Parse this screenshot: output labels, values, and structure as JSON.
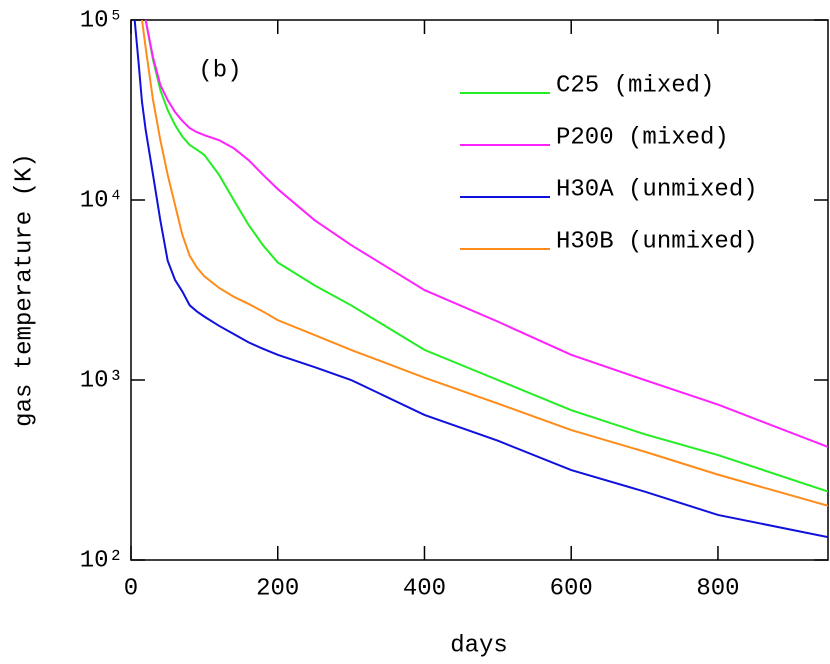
{
  "chart_data": {
    "type": "line",
    "xlabel": "days",
    "ylabel": "gas temperature (K)",
    "annotation": "(b)",
    "log_y": true,
    "x": [
      5,
      10,
      15,
      20,
      30,
      40,
      50,
      60,
      70,
      80,
      90,
      100,
      120,
      140,
      160,
      180,
      200,
      250,
      300,
      400,
      500,
      600,
      700,
      800,
      950
    ],
    "series": [
      {
        "name": "C25 (mixed)",
        "color": "#22ee22",
        "values": [
          null,
          null,
          null,
          100000,
          60000,
          40800,
          31600,
          26100,
          22500,
          20200,
          19000,
          17800,
          13800,
          10000,
          7300,
          5600,
          4500,
          3360,
          2600,
          1470,
          1000,
          680,
          500,
          383,
          240
        ]
      },
      {
        "name": "P200 (mixed)",
        "color": "#ff22ff",
        "values": [
          null,
          null,
          null,
          100000,
          62000,
          43600,
          35900,
          30800,
          27500,
          25100,
          23800,
          22900,
          21500,
          19400,
          16700,
          13800,
          11500,
          7740,
          5620,
          3160,
          2110,
          1380,
          1000,
          730,
          425
        ]
      },
      {
        "name": "H30A (unmixed)",
        "color": "#1111dd",
        "values": [
          100000,
          60000,
          35000,
          24500,
          13800,
          7700,
          4600,
          3600,
          3100,
          2600,
          2400,
          2250,
          2000,
          1800,
          1620,
          1490,
          1380,
          1180,
          1000,
          640,
          460,
          316,
          240,
          178,
          134
        ]
      },
      {
        "name": "H30B (unmixed)",
        "color": "#ff8c1a",
        "values": [
          null,
          null,
          100000,
          70000,
          36000,
          21500,
          13800,
          9400,
          6400,
          4900,
          4200,
          3770,
          3250,
          2900,
          2650,
          2400,
          2150,
          1780,
          1470,
          1030,
          740,
          527,
          400,
          298,
          200
        ]
      }
    ],
    "xlim": [
      0,
      950
    ],
    "xticks": [
      0,
      200,
      400,
      600,
      800
    ],
    "ylim": [
      100,
      100000
    ],
    "yticks": [
      {
        "value": 100,
        "label": "10²"
      },
      {
        "value": 1000,
        "label": "10³"
      },
      {
        "value": 10000,
        "label": "10⁴"
      },
      {
        "value": 100000,
        "label": "10⁵"
      }
    ],
    "legend": "upper right"
  }
}
